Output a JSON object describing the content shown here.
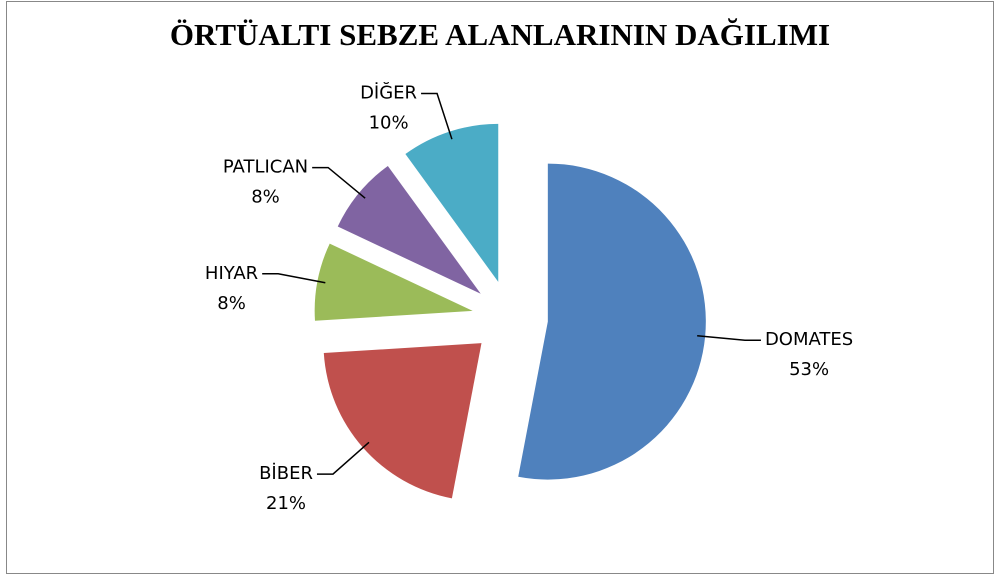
{
  "chart_data": {
    "type": "pie",
    "title": "ÖRTÜALTI SEBZE ALANLARININ DAĞILIMI",
    "categories": [
      "DOMATES",
      "BİBER",
      "HIYAR",
      "PATLICAN",
      "DİĞER"
    ],
    "values": [
      53,
      21,
      8,
      8,
      10
    ],
    "value_labels": [
      "53%",
      "21%",
      "8%",
      "8%",
      "10%"
    ],
    "colors": [
      "#4f81bd",
      "#c0504d",
      "#9bbb59",
      "#8064a2",
      "#4bacc6"
    ]
  }
}
